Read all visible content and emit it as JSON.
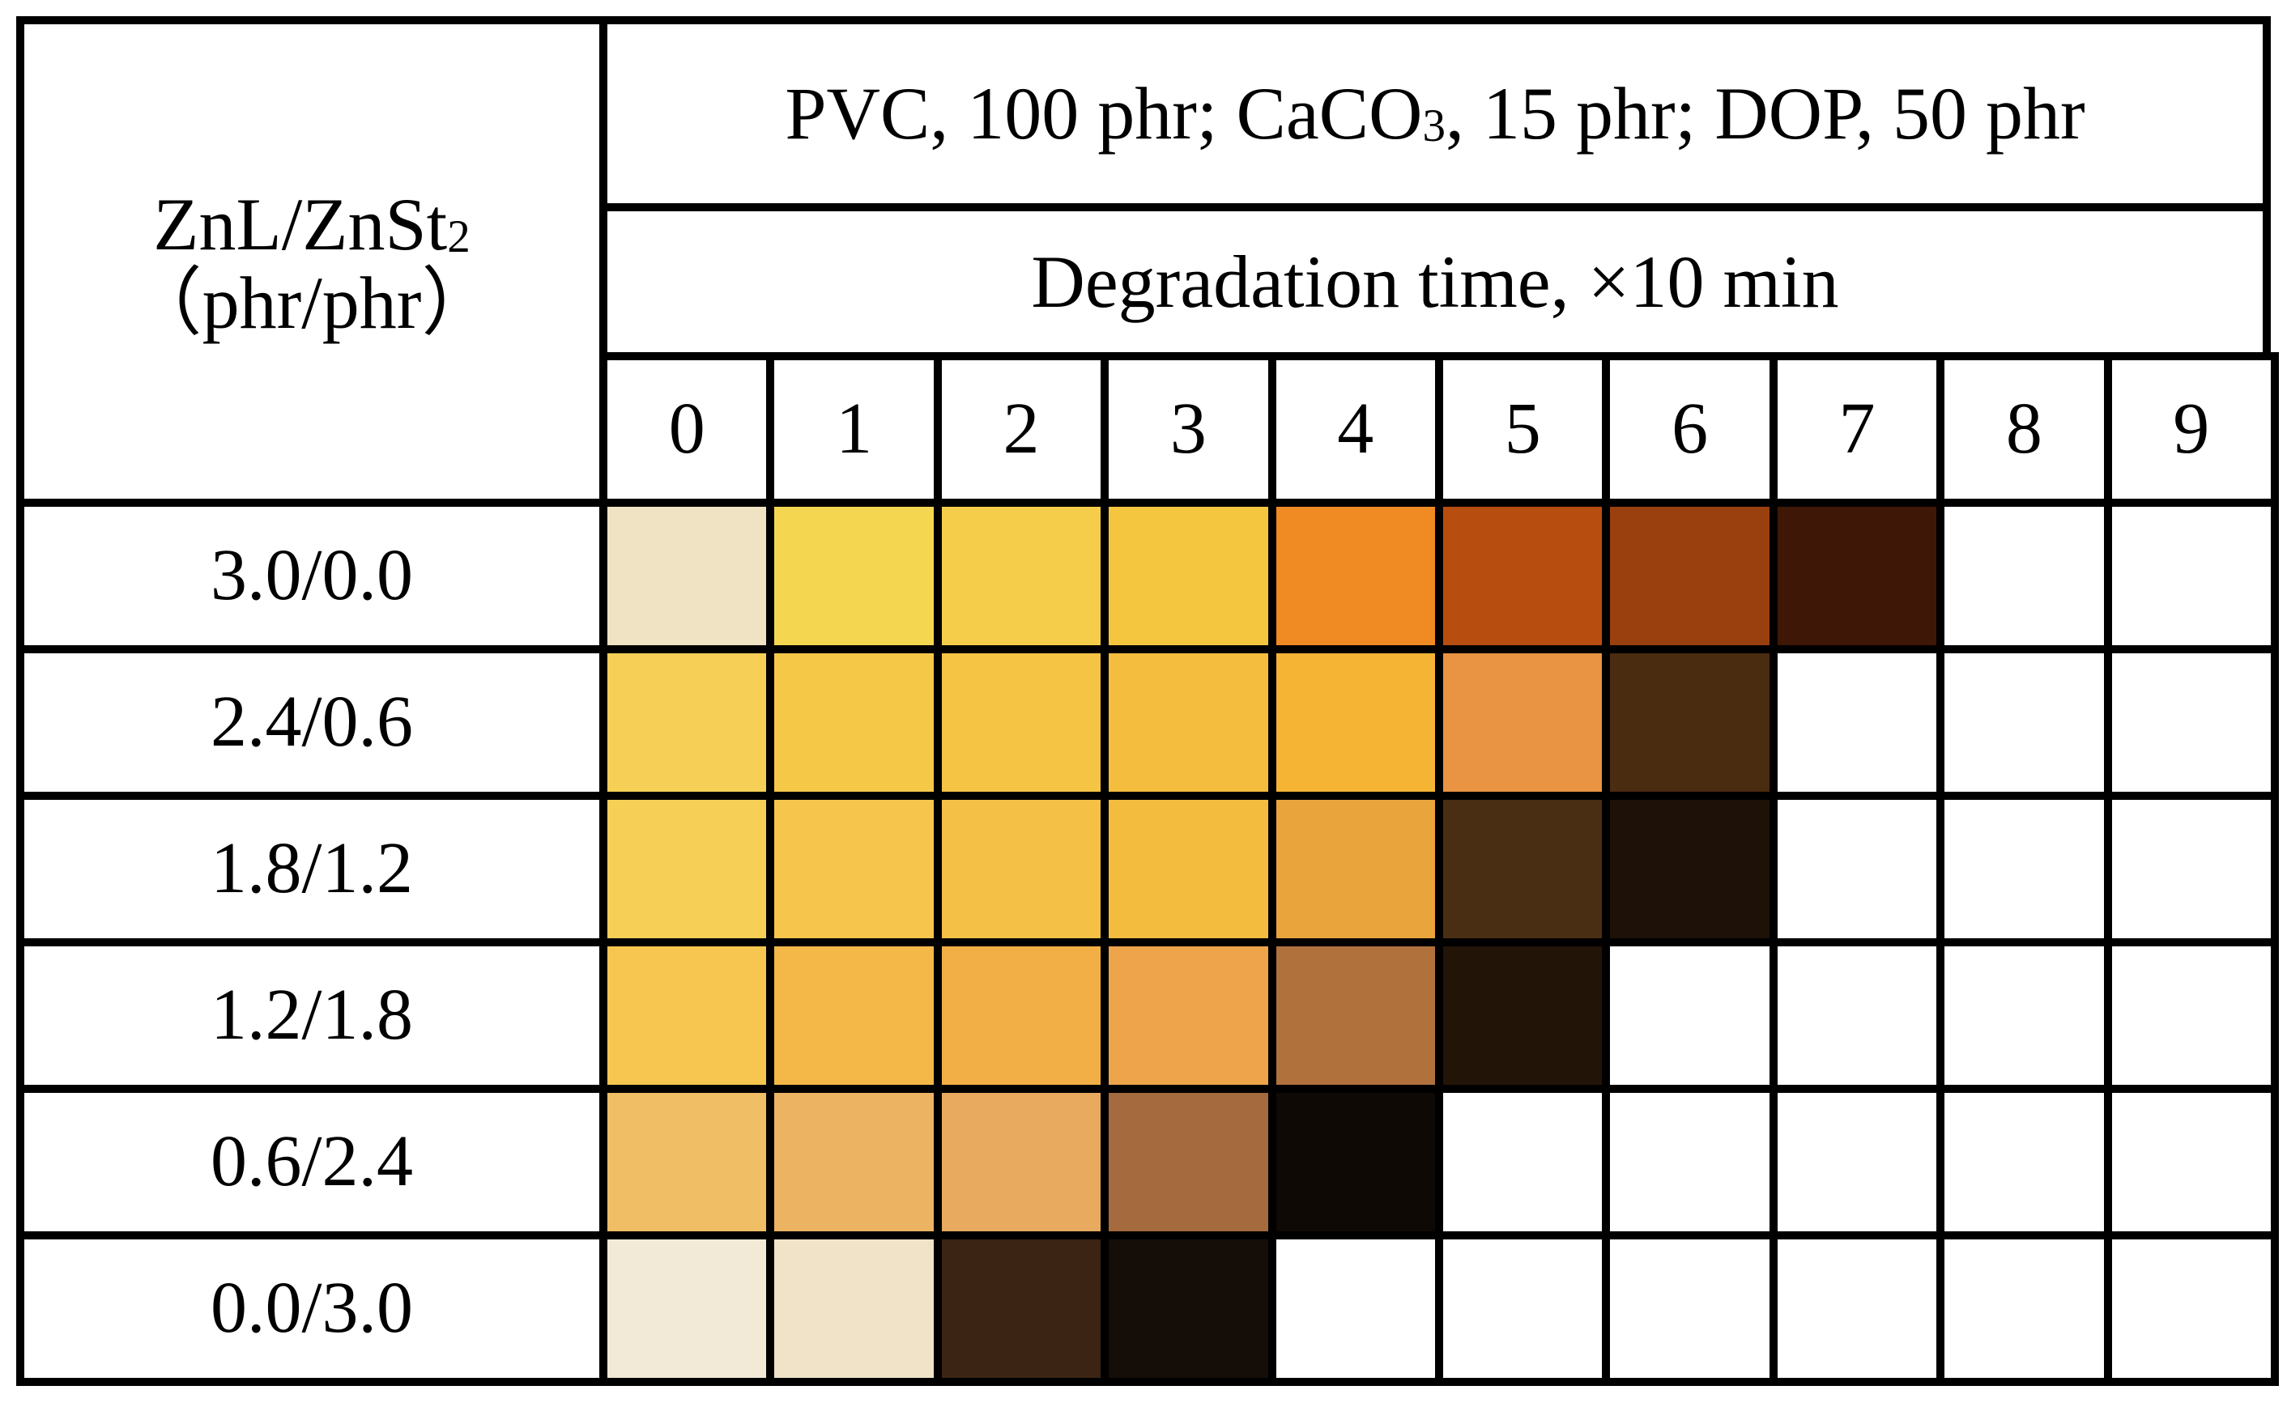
{
  "header": {
    "row_label_line1": "ZnL/ZnSt",
    "row_label_sub": "2",
    "row_label_line2": "（phr/phr）",
    "formulation_a": "PVC, 100 phr; CaCO",
    "formulation_sub": "3",
    "formulation_b": ", 15 phr; DOP, 50 phr",
    "time_label": "Degradation time, ×10 min",
    "time_columns": [
      "0",
      "1",
      "2",
      "3",
      "4",
      "5",
      "6",
      "7",
      "8",
      "9"
    ]
  },
  "rows": [
    {
      "label": "3.0/0.0",
      "swatches": [
        "#efe3c3",
        "#f4d651",
        "#f5cd4a",
        "#f4c53f",
        "#f08a22",
        "#b84d10",
        "#9a3f0e",
        "#3f1706"
      ]
    },
    {
      "label": "2.4/0.6",
      "swatches": [
        "#f6cf57",
        "#f6c848",
        "#f5c445",
        "#f4bd3e",
        "#f5b434",
        "#e89442",
        "#4a2c10"
      ]
    },
    {
      "label": "1.8/1.2",
      "swatches": [
        "#f6cf56",
        "#f5c64b",
        "#f4c046",
        "#f4bc3f",
        "#e9a43c",
        "#4a2e14",
        "#1e1208"
      ]
    },
    {
      "label": "1.2/1.8",
      "swatches": [
        "#f6c650",
        "#f4b848",
        "#f2af45",
        "#eea44a",
        "#b0713d",
        "#231408"
      ]
    },
    {
      "label": "0.6/2.4",
      "swatches": [
        "#efbe65",
        "#ecb363",
        "#e8aa5f",
        "#a56a3d",
        "#0f0906"
      ]
    },
    {
      "label": "0.0/3.0",
      "swatches": [
        "#f2ead6",
        "#f1e3c7",
        "#3b2413",
        "#150d08"
      ]
    }
  ]
}
